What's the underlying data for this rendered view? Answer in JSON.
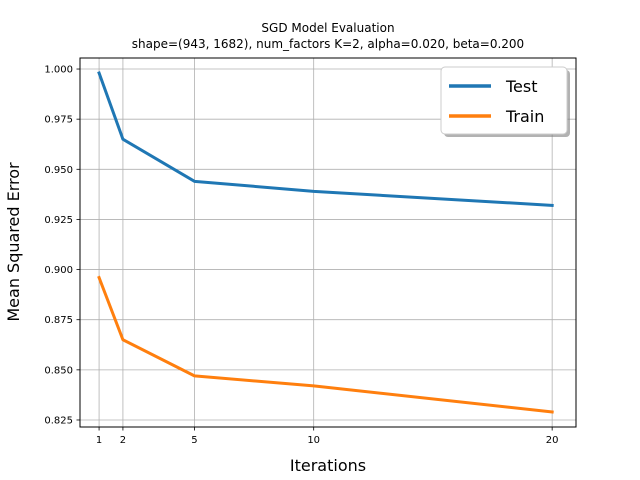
{
  "chart_data": {
    "type": "line",
    "title": "SGD Model Evaluation",
    "subtitle": "shape=(943, 1682), num_factors K=2, alpha=0.020, beta=0.200",
    "xlabel": "Iterations",
    "ylabel": "Mean Squared Error",
    "x": [
      1,
      2,
      5,
      10,
      20
    ],
    "xticks": [
      1,
      2,
      5,
      10,
      20
    ],
    "xtick_labels": [
      "1",
      "2",
      "5",
      "10",
      "20"
    ],
    "xlim": [
      0.2,
      21
    ],
    "ylim": [
      0.8215,
      1.0055
    ],
    "yticks": [
      0.825,
      0.85,
      0.875,
      0.9,
      0.925,
      0.95,
      0.975,
      1.0
    ],
    "ytick_labels": [
      "0.825",
      "0.850",
      "0.875",
      "0.900",
      "0.925",
      "0.950",
      "0.975",
      "1.000"
    ],
    "grid": true,
    "legend_position": "top-right",
    "series": [
      {
        "name": "Test",
        "color": "#1f77b4",
        "values": [
          0.998,
          0.965,
          0.944,
          0.939,
          0.932
        ]
      },
      {
        "name": "Train",
        "color": "#ff7f0e",
        "values": [
          0.896,
          0.865,
          0.847,
          0.842,
          0.829
        ]
      }
    ]
  }
}
